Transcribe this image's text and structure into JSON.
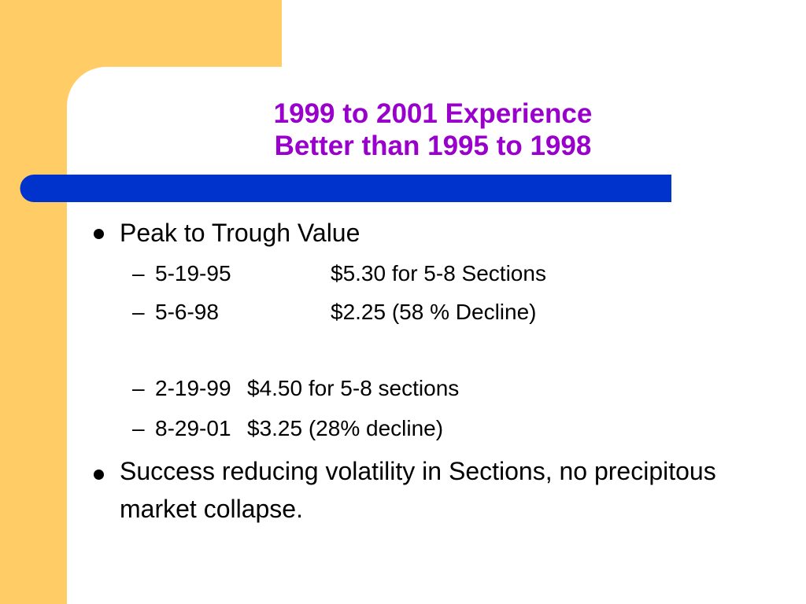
{
  "title": [
    "1999 to 2001 Experience",
    "Better than 1995 to 1998"
  ],
  "bullets": [
    {
      "text": "Peak to Trough Value",
      "items": [
        {
          "date": "5-19-95",
          "value": "$5.30 for 5-8 Sections"
        },
        {
          "date": "5-6-98",
          "value": "$2.25  (58 % Decline)"
        },
        {
          "date": "2-19-99",
          "value": "$4.50 for 5-8 sections"
        },
        {
          "date": "8-29-01",
          "value": "$3.25  (28% decline)"
        }
      ]
    },
    {
      "text": "Success reducing volatility in Sections, no precipitous market collapse."
    }
  ]
}
